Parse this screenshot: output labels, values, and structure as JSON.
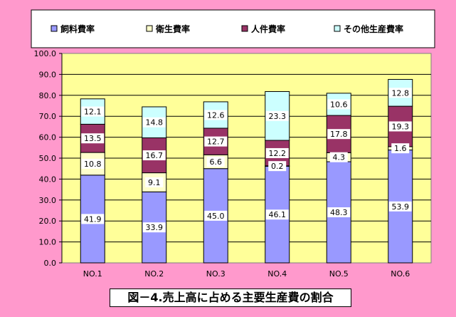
{
  "chart_data": {
    "type": "bar",
    "stacked": true,
    "categories": [
      "NO.1",
      "NO.2",
      "NO.3",
      "NO.4",
      "NO.5",
      "NO.6"
    ],
    "series": [
      {
        "name": "飼料費率",
        "color": "#9999ff",
        "values": [
          41.9,
          33.9,
          45.0,
          46.1,
          48.3,
          53.9
        ]
      },
      {
        "name": "衛生費率",
        "color": "#ffffcc",
        "values": [
          10.8,
          9.1,
          6.6,
          0.2,
          4.3,
          1.6
        ]
      },
      {
        "name": "人件費率",
        "color": "#993366",
        "values": [
          13.5,
          16.7,
          12.7,
          12.2,
          17.8,
          19.3
        ]
      },
      {
        "name": "その他生産費率",
        "color": "#ccffff",
        "values": [
          12.1,
          14.8,
          12.6,
          23.3,
          10.6,
          12.8
        ]
      }
    ],
    "yticks": [
      "0.0",
      "10.0",
      "20.0",
      "30.0",
      "40.0",
      "50.0",
      "60.0",
      "70.0",
      "80.0",
      "90.0",
      "100.0"
    ],
    "ylim": [
      0,
      100
    ],
    "grid": true,
    "legend_position": "top",
    "plot_background": "#ffff99",
    "caption": "図－4.売上高に占める主要生産費の割合"
  }
}
